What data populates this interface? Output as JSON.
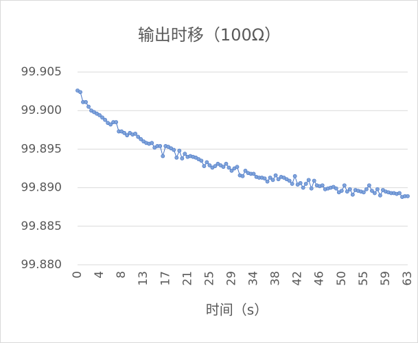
{
  "chart_data": {
    "type": "line",
    "title": "输出时移（100Ω）",
    "xlabel": "时间（s）",
    "x": [
      0,
      0.525,
      1.05,
      1.575,
      2.1,
      2.625,
      3.15,
      3.675,
      4.2,
      4.725,
      5.25,
      5.775,
      6.3,
      6.825,
      7.35,
      7.875,
      8.4,
      8.925,
      9.45,
      9.975,
      10.5,
      11.025,
      11.55,
      12.075,
      12.6,
      13.125,
      13.65,
      14.175,
      14.7,
      15.225,
      15.75,
      16.275,
      16.8,
      17.325,
      17.85,
      18.375,
      18.9,
      19.425,
      19.95,
      20.475,
      21,
      21.525,
      22.05,
      22.575,
      23.1,
      23.625,
      24.15,
      24.675,
      25.2,
      25.725,
      26.25,
      26.775,
      27.3,
      27.825,
      28.35,
      28.875,
      29.4,
      29.925,
      30.45,
      30.975,
      31.5,
      32.025,
      32.55,
      33.075,
      33.6,
      34.125,
      34.65,
      35.175,
      35.7,
      36.225,
      36.75,
      37.275,
      37.8,
      38.325,
      38.85,
      39.375,
      39.9,
      40.425,
      40.95,
      41.475,
      42,
      42.525,
      43.05,
      43.575,
      44.1,
      44.625,
      45.15,
      45.675,
      46.2,
      46.725,
      47.25,
      47.775,
      48.3,
      48.825,
      49.35,
      49.875,
      50.4,
      50.925,
      51.45,
      51.975,
      52.5,
      53.025,
      53.55,
      54.075,
      54.6,
      55.125,
      55.65,
      56.175,
      56.7,
      57.225,
      57.75,
      58.275,
      58.8,
      59.325,
      59.85,
      60.375,
      60.9,
      61.425,
      61.95,
      62.475,
      63
    ],
    "series": [
      {
        "color": "#4472c4",
        "marker_color": "#7fa3da",
        "values": [
          99.9026,
          99.9024,
          99.9011,
          99.9011,
          99.9005,
          99.9,
          99.8998,
          99.8996,
          99.8994,
          99.8991,
          99.8988,
          99.8984,
          99.8982,
          99.8985,
          99.8985,
          99.8973,
          99.8973,
          99.8971,
          99.8968,
          99.8971,
          99.8969,
          99.897,
          99.8966,
          99.8963,
          99.896,
          99.8958,
          99.8957,
          99.8958,
          99.8952,
          99.8954,
          99.8954,
          99.8941,
          99.8954,
          99.8953,
          99.8951,
          99.8949,
          99.8939,
          99.8948,
          99.8938,
          99.8944,
          99.894,
          99.8941,
          99.894,
          99.8939,
          99.8937,
          99.8935,
          99.8928,
          99.8933,
          99.8929,
          99.8926,
          99.8928,
          99.8931,
          99.8929,
          99.8927,
          99.8931,
          99.8926,
          99.8922,
          99.8925,
          99.8927,
          99.8916,
          99.8915,
          99.8922,
          99.8919,
          99.8918,
          99.8918,
          99.8914,
          99.8913,
          99.8913,
          99.8912,
          99.8908,
          99.8913,
          99.891,
          99.8916,
          99.8911,
          99.8914,
          99.8913,
          99.8911,
          99.8909,
          99.8905,
          99.8915,
          99.8904,
          99.8906,
          99.89,
          99.8905,
          99.891,
          99.8899,
          99.8909,
          99.8903,
          99.8902,
          99.8903,
          99.8898,
          99.8899,
          99.89,
          99.8901,
          99.8899,
          99.8894,
          99.8896,
          99.8903,
          99.8895,
          99.8898,
          99.8891,
          99.8897,
          99.8896,
          99.8895,
          99.8894,
          99.8898,
          99.8903,
          99.8896,
          99.8893,
          99.8898,
          99.889,
          99.8897,
          99.8895,
          99.8894,
          99.8893,
          99.8893,
          99.8892,
          99.8893,
          99.8888,
          99.8889,
          99.8889
        ]
      }
    ],
    "xlim": [
      0,
      63
    ],
    "xticks": [
      0,
      {
        "value": 4.2,
        "label": "4"
      },
      {
        "value": 8.4,
        "label": "8"
      },
      {
        "value": 12.6,
        "label": "13"
      },
      {
        "value": 16.8,
        "label": "17"
      },
      21,
      {
        "value": 25.2,
        "label": "25"
      },
      {
        "value": 29.4,
        "label": "29"
      },
      {
        "value": 33.6,
        "label": "34"
      },
      {
        "value": 37.8,
        "label": "38"
      },
      42,
      {
        "value": 46.2,
        "label": "46"
      },
      {
        "value": 50.4,
        "label": "50"
      },
      {
        "value": 54.6,
        "label": "55"
      },
      {
        "value": 58.8,
        "label": "59"
      },
      63
    ],
    "ylim": [
      99.88,
      99.905
    ],
    "yticks": [
      {
        "value": 99.88,
        "label": "99.880"
      },
      99.885,
      {
        "value": 99.89,
        "label": "99.890"
      },
      99.895,
      {
        "value": 99.9,
        "label": "99.900"
      },
      99.905
    ],
    "grid": true
  }
}
